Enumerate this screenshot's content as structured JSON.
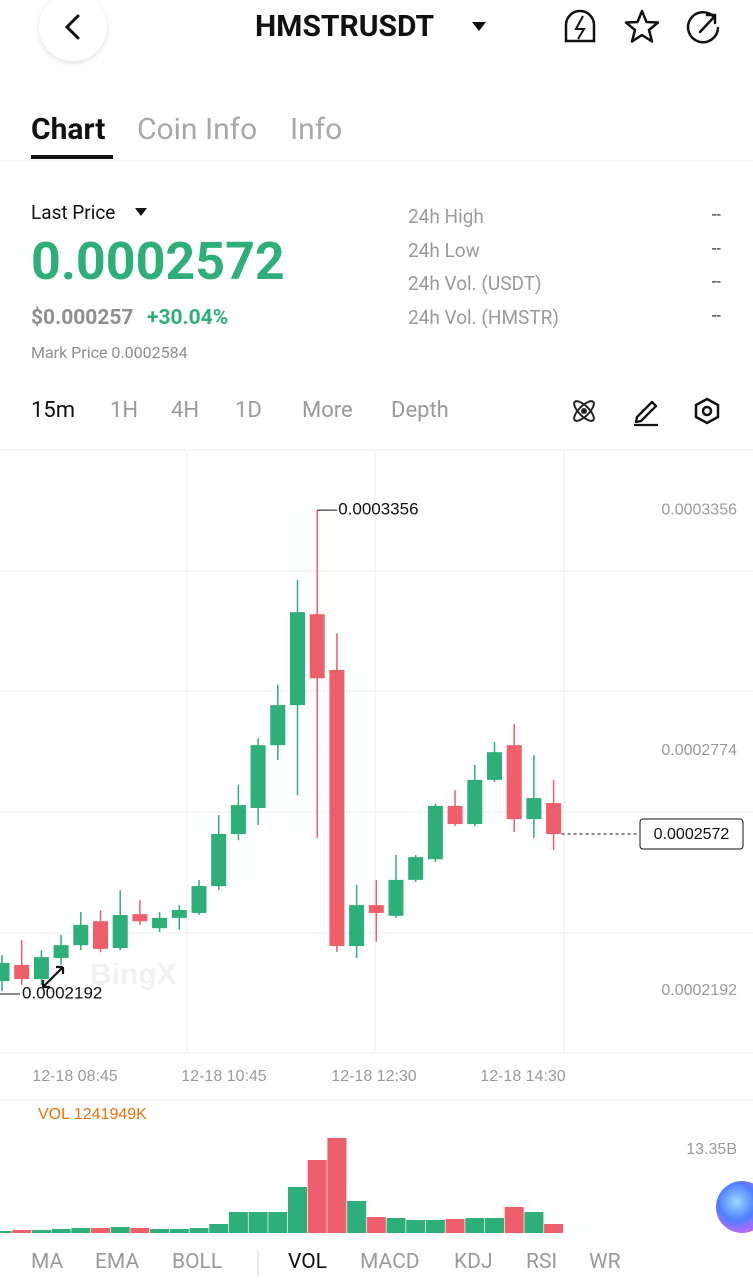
{
  "header": {
    "title": "HMSTRUSDT"
  },
  "tabs": [
    "Chart",
    "Coin Info",
    "Info"
  ],
  "price": {
    "label": "Last Price",
    "last": "0.0002572",
    "usd": "$0.000257",
    "change": "+30.04%",
    "mark": "Mark Price 0.0002584"
  },
  "stats": [
    {
      "label": "24h High",
      "value": "--"
    },
    {
      "label": "24h Low",
      "value": "--"
    },
    {
      "label": "24h Vol. (USDT)",
      "value": "--"
    },
    {
      "label": "24h Vol. (HMSTR)",
      "value": "--"
    }
  ],
  "timeframes": [
    "15m",
    "1H",
    "4H",
    "1D",
    "More",
    "Depth"
  ],
  "watermark": "BingX",
  "indicators": [
    "MA",
    "EMA",
    "BOLL",
    "VOL",
    "MACD",
    "KDJ",
    "RSI",
    "WR"
  ],
  "chart_data": [
    {
      "type": "candlestick",
      "up_color": "#2eae78",
      "down_color": "#ef5f6b",
      "open": [
        0.0002216,
        0.0002255,
        0.0002221,
        0.0002272,
        0.0002303,
        0.0002361,
        0.0002296,
        0.0002378,
        0.0002344,
        0.0002369,
        0.0002381,
        0.0002446,
        0.0002572,
        0.0002635,
        0.0002787,
        0.0002884,
        0.0003104,
        0.0002969,
        0.0002301,
        0.00024,
        0.0002374,
        0.0002461,
        0.0002511,
        0.000264,
        0.0002596,
        0.0002703,
        0.0002787,
        0.0002608,
        0.0002647
      ],
      "high": [
        0.0002279,
        0.0002315,
        0.0002291,
        0.0002328,
        0.0002383,
        0.0002388,
        0.0002436,
        0.0002412,
        0.0002383,
        0.00024,
        0.0002461,
        0.0002618,
        0.0002691,
        0.0002804,
        0.0002933,
        0.0003187,
        0.0003356,
        0.0003058,
        0.0002449,
        0.0002461,
        0.0002521,
        0.0002521,
        0.0002645,
        0.0002678,
        0.0002739,
        0.0002795,
        0.0002838,
        0.0002763,
        0.0002703
      ],
      "low": [
        0.0002192,
        0.0002207,
        0.0002207,
        0.0002255,
        0.0002291,
        0.0002286,
        0.0002291,
        0.0002352,
        0.0002335,
        0.000234,
        0.0002376,
        0.0002436,
        0.0002557,
        0.0002594,
        0.0002751,
        0.0002666,
        0.0002562,
        0.0002286,
        0.0002272,
        0.0002311,
        0.0002369,
        0.0002456,
        0.0002504,
        0.0002591,
        0.0002591,
        0.0002698,
        0.0002577,
        0.0002562,
        0.0002533
      ],
      "close": [
        0.000226,
        0.0002221,
        0.0002274,
        0.0002303,
        0.0002352,
        0.0002294,
        0.0002376,
        0.0002361,
        0.0002369,
        0.0002388,
        0.0002446,
        0.0002572,
        0.0002642,
        0.0002787,
        0.0002884,
        0.0003109,
        0.0002949,
        0.0002301,
        0.00024,
        0.0002381,
        0.0002461,
        0.0002516,
        0.000264,
        0.0002596,
        0.0002703,
        0.000277,
        0.0002608,
        0.0002659,
        0.0002572
      ],
      "ylim": [
        0.0002042,
        0.0003499
      ],
      "yticks": [
        0.0002192,
        0.0002774,
        0.0003356
      ],
      "high_label": "0.0003356",
      "low_label": "0.0002192",
      "current_label": "0.0002572",
      "x_labels": [
        "12-18 08:45",
        "12-18 10:45",
        "12-18 12:30",
        "12-18 14:30"
      ]
    },
    {
      "type": "bar",
      "title": "VOL 1241949K",
      "values": [
        0.32,
        0.48,
        0.48,
        0.64,
        0.8,
        0.8,
        0.96,
        0.8,
        0.64,
        0.64,
        0.8,
        1.45,
        3.38,
        3.38,
        3.38,
        7.4,
        11.74,
        15.28,
        5.15,
        2.57,
        2.41,
        2.09,
        2.09,
        2.25,
        2.41,
        2.41,
        4.18,
        3.38,
        1.45
      ],
      "ylim": [
        0,
        16.08
      ],
      "yticks": [
        {
          "value": 13.35,
          "label": "13.35B"
        }
      ]
    }
  ]
}
